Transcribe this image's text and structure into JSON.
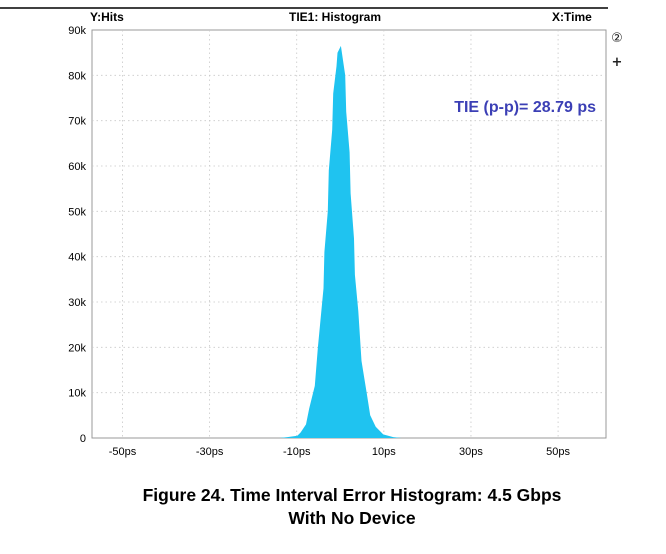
{
  "chart_data": {
    "type": "area",
    "title": "TIE1: Histogram",
    "ylabel_header": "Y:Hits",
    "xlabel_header": "X:Time",
    "annotation": "TIE (p-p)= 28.79 ps",
    "x_unit": "ps",
    "xlim": [
      -57,
      61
    ],
    "ylim": [
      0,
      90000
    ],
    "x_ticks": [
      -50,
      -30,
      -10,
      10,
      30,
      50
    ],
    "x_tick_labels": [
      "-50ps",
      "-30ps",
      "-10ps",
      "10ps",
      "30ps",
      "50ps"
    ],
    "y_ticks": [
      0,
      10000,
      20000,
      30000,
      40000,
      50000,
      60000,
      70000,
      80000,
      90000
    ],
    "y_tick_labels": [
      "0",
      "10k",
      "20k",
      "30k",
      "40k",
      "50k",
      "60k",
      "70k",
      "80k",
      "90k"
    ],
    "grid": true,
    "fill_color": "#1fc3f0",
    "annotation_color": "#3b3fb5",
    "series": [
      {
        "x": [
          -14,
          -12,
          -10,
          -9,
          -8,
          -7,
          -6,
          -5,
          -4,
          -3.5,
          -3,
          -2.5,
          -2,
          -1.5,
          -1,
          -0.5,
          0,
          0.5,
          1,
          1.5,
          2,
          2.5,
          3,
          3.5,
          4,
          5,
          6,
          7,
          8,
          10,
          12,
          14
        ],
        "values": [
          0,
          200,
          500,
          1200,
          3000,
          6500,
          11500,
          20000,
          33000,
          41000,
          50000,
          59000,
          68000,
          76000,
          82000,
          85000,
          86500,
          85000,
          80000,
          72000,
          63000,
          54000,
          44000,
          36000,
          28000,
          17000,
          9500,
          5000,
          2500,
          800,
          200,
          0
        ]
      }
    ]
  },
  "controls": {
    "circle_button": "②",
    "plus_button": "+"
  },
  "caption": {
    "line1": "Figure 24. Time Interval Error Histogram: 4.5 Gbps",
    "line2": "With No Device"
  }
}
